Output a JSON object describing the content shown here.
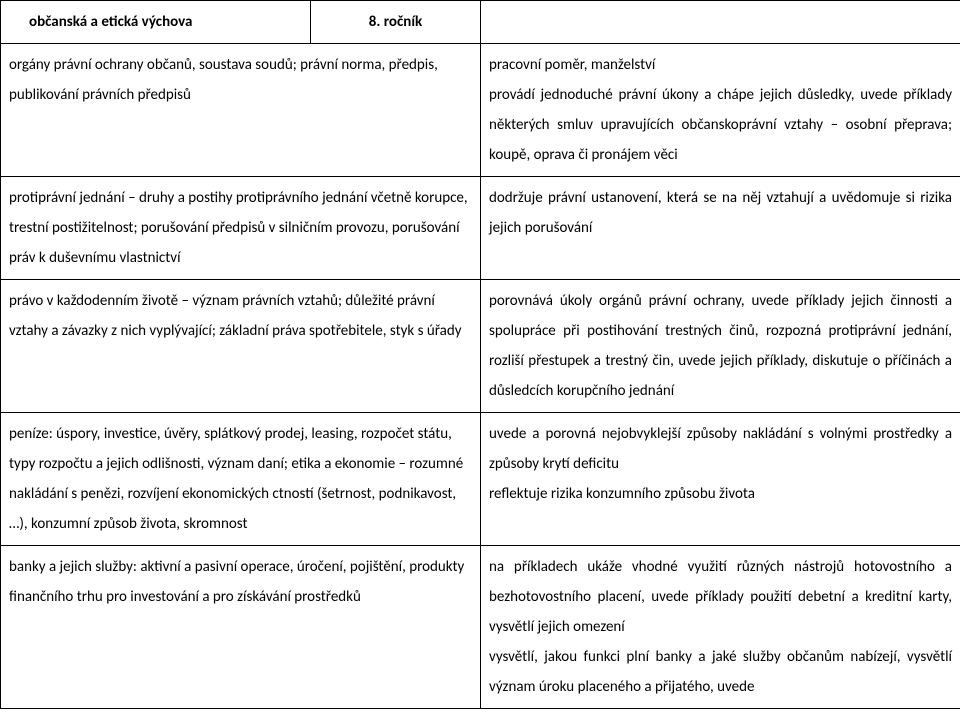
{
  "header": {
    "subject": "občanská a etická výchova",
    "grade": "8. ročník"
  },
  "rows": [
    {
      "left": "orgány právní ochrany občanů, soustava soudů; právní norma, předpis, publikování právních předpisů",
      "right": "pracovní poměr, manželství\nprovádí jednoduché právní úkony a chápe jejich důsledky, uvede příklady některých smluv upravujících občanskoprávní vztahy – osobní přeprava; koupě, oprava či pronájem věci"
    },
    {
      "left": "protiprávní jednání – druhy a postihy protiprávního jednání včetně korupce, trestní postižitelnost; porušování předpisů v silničním provozu, porušování práv k duševnímu vlastnictví",
      "right": "dodržuje právní ustanovení, která se na něj vztahují a uvědomuje si rizika jejich porušování"
    },
    {
      "left": "právo v každodenním životě – význam právních vztahů; důležité právní vztahy a závazky z nich vyplývající; základní práva spotřebitele, styk s úřady",
      "right": "porovnává úkoly orgánů právní ochrany, uvede příklady jejich činnosti a spolupráce při postihování trestných činů, rozpozná protiprávní jednání, rozliší přestupek a trestný čin, uvede jejich příklady, diskutuje o příčinách a důsledcích korupčního jednání"
    },
    {
      "left": "peníze: úspory, investice, úvěry, splátkový prodej, leasing, rozpočet státu, typy rozpočtu a jejich odlišnosti, význam daní; etika a ekonomie – rozumné nakládání s penězi, rozvíjení ekonomických ctností (šetrnost, podnikavost, …), konzumní způsob života, skromnost",
      "right": "uvede a porovná nejobvyklejší způsoby nakládání s volnými prostředky a způsoby krytí deficitu\nreflektuje rizika konzumního způsobu života"
    },
    {
      "left": "banky a jejich služby: aktivní a pasivní operace, úročení, pojištění, produkty finančního trhu pro investování a pro získávání prostředků",
      "right": "na příkladech ukáže vhodné využití různých nástrojů hotovostního a bezhotovostního placení, uvede příklady použití debetní a kreditní karty, vysvětlí jejich omezení\nvysvětlí, jakou funkci plní banky a jaké služby občanům nabízejí, vysvětlí význam úroku placeného a přijatého, uvede"
    }
  ]
}
